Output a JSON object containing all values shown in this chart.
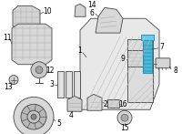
{
  "bg_color": "#ffffff",
  "highlight_color": "#4db8d4",
  "line_color": "#444444",
  "fig_width": 2.0,
  "fig_height": 1.47,
  "dpi": 100
}
